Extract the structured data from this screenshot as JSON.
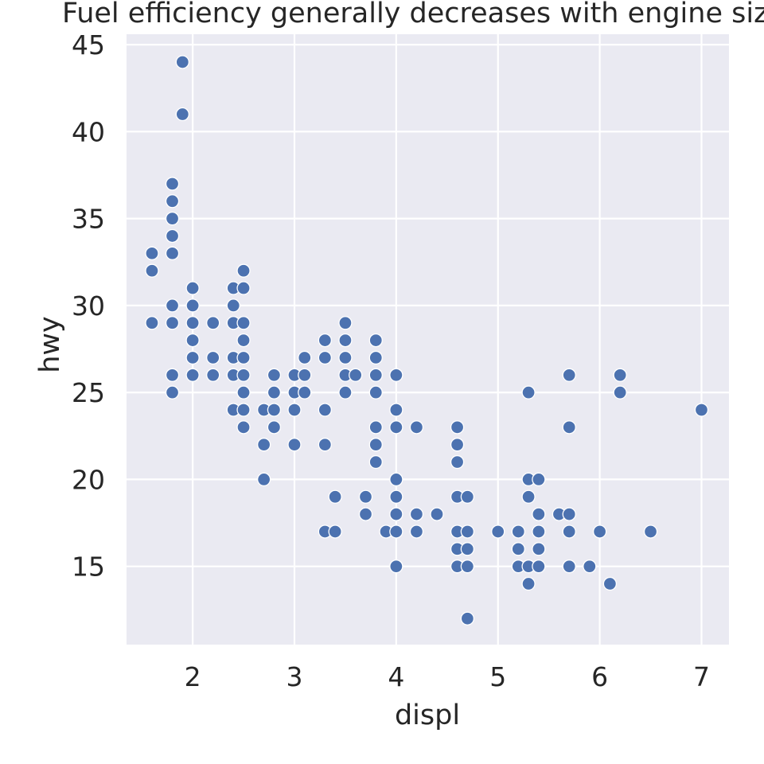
{
  "chart_data": {
    "type": "scatter",
    "title": "Fuel efficiency generally decreases with engine size",
    "xlabel": "displ",
    "ylabel": "hwy",
    "xlim": [
      1.35,
      7.27
    ],
    "ylim": [
      10.5,
      45.6
    ],
    "xticks": [
      2,
      3,
      4,
      5,
      6,
      7
    ],
    "yticks": [
      15,
      20,
      25,
      30,
      35,
      40,
      45
    ],
    "grid": true,
    "colors": {
      "background": "#EAEAF2",
      "grid": "#FFFFFF",
      "point": "#4C72B0",
      "point_edge": "#FFFFFF"
    },
    "points": [
      [
        1.6,
        33
      ],
      [
        1.6,
        32
      ],
      [
        1.6,
        29
      ],
      [
        1.8,
        37
      ],
      [
        1.8,
        36
      ],
      [
        1.8,
        35
      ],
      [
        1.8,
        34
      ],
      [
        1.8,
        33
      ],
      [
        1.8,
        30
      ],
      [
        1.8,
        29
      ],
      [
        1.8,
        26
      ],
      [
        1.8,
        25
      ],
      [
        1.9,
        44
      ],
      [
        1.9,
        41
      ],
      [
        2.0,
        31
      ],
      [
        2.0,
        30
      ],
      [
        2.0,
        29
      ],
      [
        2.0,
        28
      ],
      [
        2.0,
        27
      ],
      [
        2.0,
        26
      ],
      [
        2.2,
        29
      ],
      [
        2.2,
        27
      ],
      [
        2.2,
        26
      ],
      [
        2.4,
        31
      ],
      [
        2.4,
        30
      ],
      [
        2.4,
        29
      ],
      [
        2.4,
        27
      ],
      [
        2.4,
        26
      ],
      [
        2.4,
        24
      ],
      [
        2.5,
        32
      ],
      [
        2.5,
        31
      ],
      [
        2.5,
        29
      ],
      [
        2.5,
        28
      ],
      [
        2.5,
        27
      ],
      [
        2.5,
        26
      ],
      [
        2.5,
        25
      ],
      [
        2.5,
        24
      ],
      [
        2.5,
        23
      ],
      [
        2.7,
        24
      ],
      [
        2.7,
        22
      ],
      [
        2.7,
        20
      ],
      [
        2.8,
        26
      ],
      [
        2.8,
        25
      ],
      [
        2.8,
        24
      ],
      [
        2.8,
        23
      ],
      [
        3.0,
        26
      ],
      [
        3.0,
        25
      ],
      [
        3.0,
        24
      ],
      [
        3.0,
        22
      ],
      [
        3.1,
        27
      ],
      [
        3.1,
        26
      ],
      [
        3.1,
        25
      ],
      [
        3.3,
        28
      ],
      [
        3.3,
        27
      ],
      [
        3.3,
        24
      ],
      [
        3.3,
        22
      ],
      [
        3.3,
        17
      ],
      [
        3.4,
        19
      ],
      [
        3.4,
        17
      ],
      [
        3.5,
        29
      ],
      [
        3.5,
        28
      ],
      [
        3.5,
        27
      ],
      [
        3.5,
        26
      ],
      [
        3.5,
        25
      ],
      [
        3.6,
        26
      ],
      [
        3.7,
        19
      ],
      [
        3.7,
        18
      ],
      [
        3.8,
        28
      ],
      [
        3.8,
        27
      ],
      [
        3.8,
        26
      ],
      [
        3.8,
        25
      ],
      [
        3.8,
        23
      ],
      [
        3.8,
        22
      ],
      [
        3.8,
        21
      ],
      [
        3.9,
        17
      ],
      [
        4.0,
        26
      ],
      [
        4.0,
        24
      ],
      [
        4.0,
        23
      ],
      [
        4.0,
        20
      ],
      [
        4.0,
        19
      ],
      [
        4.0,
        18
      ],
      [
        4.0,
        17
      ],
      [
        4.0,
        15
      ],
      [
        4.2,
        23
      ],
      [
        4.2,
        18
      ],
      [
        4.2,
        17
      ],
      [
        4.4,
        18
      ],
      [
        4.6,
        23
      ],
      [
        4.6,
        22
      ],
      [
        4.6,
        21
      ],
      [
        4.6,
        19
      ],
      [
        4.6,
        17
      ],
      [
        4.6,
        16
      ],
      [
        4.6,
        15
      ],
      [
        4.7,
        19
      ],
      [
        4.7,
        17
      ],
      [
        4.7,
        16
      ],
      [
        4.7,
        15
      ],
      [
        4.7,
        12
      ],
      [
        5.0,
        17
      ],
      [
        5.2,
        17
      ],
      [
        5.2,
        16
      ],
      [
        5.2,
        15
      ],
      [
        5.3,
        25
      ],
      [
        5.3,
        20
      ],
      [
        5.3,
        19
      ],
      [
        5.3,
        15
      ],
      [
        5.3,
        14
      ],
      [
        5.4,
        20
      ],
      [
        5.4,
        18
      ],
      [
        5.4,
        17
      ],
      [
        5.4,
        16
      ],
      [
        5.4,
        15
      ],
      [
        5.6,
        18
      ],
      [
        5.7,
        26
      ],
      [
        5.7,
        23
      ],
      [
        5.7,
        18
      ],
      [
        5.7,
        17
      ],
      [
        5.7,
        15
      ],
      [
        5.9,
        15
      ],
      [
        6.0,
        17
      ],
      [
        6.1,
        14
      ],
      [
        6.2,
        26
      ],
      [
        6.2,
        25
      ],
      [
        6.5,
        17
      ],
      [
        7.0,
        24
      ]
    ]
  }
}
